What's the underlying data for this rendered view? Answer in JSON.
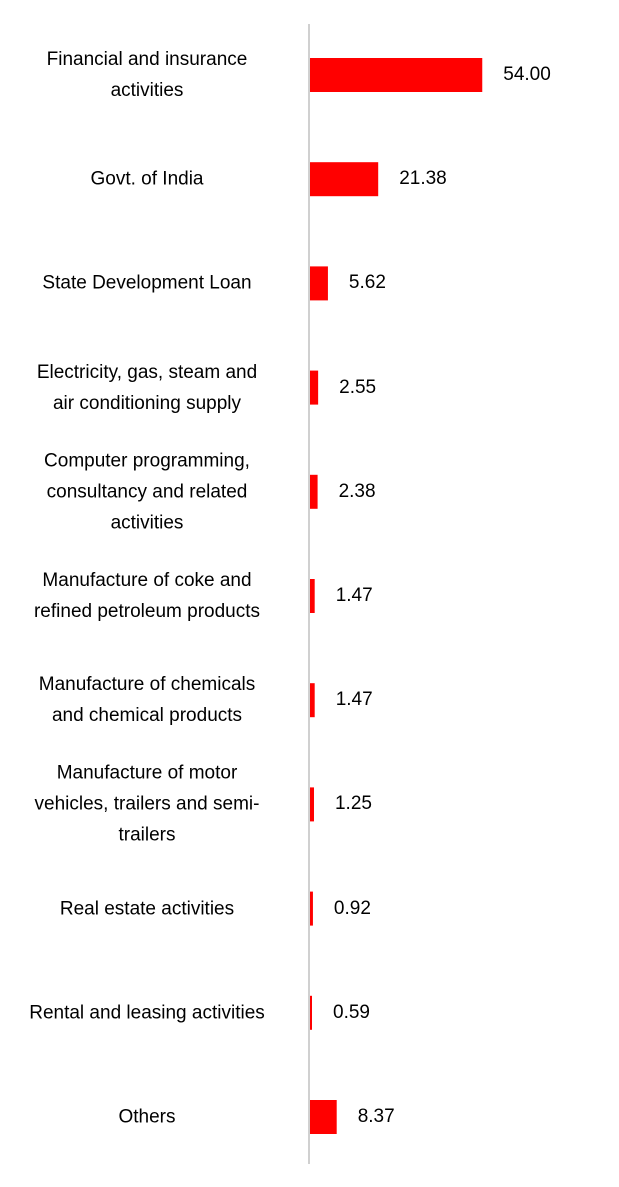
{
  "chart_data": {
    "type": "bar",
    "orientation": "horizontal",
    "categories": [
      [
        "Financial and insurance",
        "activities"
      ],
      [
        "Govt. of India"
      ],
      [
        "State Development Loan"
      ],
      [
        "Electricity, gas, steam and",
        "air conditioning supply"
      ],
      [
        "Computer programming,",
        "consultancy and related",
        "activities"
      ],
      [
        "Manufacture of coke and",
        "refined petroleum products"
      ],
      [
        "Manufacture of chemicals",
        "and chemical products"
      ],
      [
        "Manufacture of motor",
        "vehicles, trailers and semi-",
        "trailers"
      ],
      [
        "Real estate activities"
      ],
      [
        "Rental and leasing activities"
      ],
      [
        "Others"
      ]
    ],
    "values": [
      54.0,
      21.38,
      5.62,
      2.55,
      2.38,
      1.47,
      1.47,
      1.25,
      0.92,
      0.59,
      8.37
    ],
    "value_labels": [
      "54.00",
      "21.38",
      "5.62",
      "2.55",
      "2.38",
      "1.47",
      "1.47",
      "1.25",
      "0.92",
      "0.59",
      "8.37"
    ],
    "title": "",
    "xlabel": "",
    "ylabel": "",
    "xlim": [
      0,
      100
    ],
    "grid": false,
    "legend": "none",
    "bar_color": "#ff0000",
    "axis_color": "#d0d0d0"
  }
}
